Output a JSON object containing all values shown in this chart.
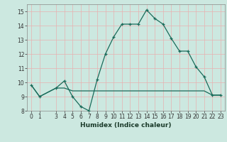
{
  "xlabel": "Humidex (Indice chaleur)",
  "background_color": "#cce8e0",
  "line_color": "#1a6b5a",
  "grid_color_h": "#e8b0b0",
  "grid_color_v": "#e8b0b0",
  "line1_x": [
    0,
    1,
    3,
    4,
    5,
    6,
    7,
    8,
    9,
    10,
    11,
    12,
    13,
    14,
    15,
    16,
    17,
    18,
    19,
    20,
    21,
    22,
    23
  ],
  "line1_y": [
    9.8,
    9.0,
    9.6,
    10.1,
    9.0,
    8.3,
    8.0,
    10.2,
    12.0,
    13.2,
    14.1,
    14.1,
    14.1,
    15.1,
    14.5,
    14.1,
    13.1,
    12.2,
    12.2,
    11.1,
    10.4,
    9.1,
    9.1
  ],
  "line2_x": [
    0,
    1,
    3,
    4,
    5,
    6,
    7,
    8,
    9,
    10,
    11,
    12,
    13,
    14,
    15,
    16,
    17,
    18,
    19,
    20,
    21,
    22,
    23
  ],
  "line2_y": [
    9.8,
    9.0,
    9.6,
    9.6,
    9.4,
    9.4,
    9.4,
    9.4,
    9.4,
    9.4,
    9.4,
    9.4,
    9.4,
    9.4,
    9.4,
    9.4,
    9.4,
    9.4,
    9.4,
    9.4,
    9.4,
    9.1,
    9.1
  ],
  "xlim": [
    -0.5,
    23.5
  ],
  "ylim": [
    8,
    15.5
  ],
  "yticks": [
    8,
    9,
    10,
    11,
    12,
    13,
    14,
    15
  ],
  "xticks": [
    0,
    1,
    3,
    4,
    5,
    6,
    7,
    8,
    9,
    10,
    11,
    12,
    13,
    14,
    15,
    16,
    17,
    18,
    19,
    20,
    21,
    22,
    23
  ],
  "tick_fontsize": 5.5,
  "xlabel_fontsize": 6.5
}
